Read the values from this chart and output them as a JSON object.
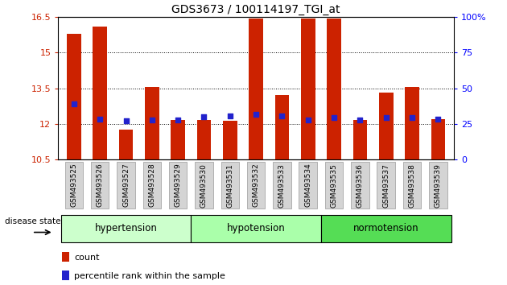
{
  "title": "GDS3673 / 100114197_TGI_at",
  "samples": [
    "GSM493525",
    "GSM493526",
    "GSM493527",
    "GSM493528",
    "GSM493529",
    "GSM493530",
    "GSM493531",
    "GSM493532",
    "GSM493533",
    "GSM493534",
    "GSM493535",
    "GSM493536",
    "GSM493537",
    "GSM493538",
    "GSM493539"
  ],
  "bar_heights": [
    15.8,
    16.1,
    11.75,
    13.55,
    12.18,
    12.18,
    12.12,
    16.45,
    13.22,
    16.45,
    16.45,
    12.18,
    13.32,
    13.55,
    12.22
  ],
  "blue_dot_y": [
    12.85,
    12.22,
    12.12,
    12.18,
    12.18,
    12.32,
    12.35,
    12.42,
    12.35,
    12.18,
    12.28,
    12.18,
    12.28,
    12.28,
    12.22
  ],
  "bar_color": "#cc2200",
  "dot_color": "#2222cc",
  "ylim_left": [
    10.5,
    16.5
  ],
  "ylim_right": [
    0,
    100
  ],
  "yticks_left": [
    10.5,
    12.0,
    13.5,
    15.0,
    16.5
  ],
  "yticks_right": [
    0,
    25,
    50,
    75,
    100
  ],
  "ytick_labels_left": [
    "10.5",
    "12",
    "13.5",
    "15",
    "16.5"
  ],
  "ytick_labels_right": [
    "0",
    "25",
    "50",
    "75",
    "100%"
  ],
  "groups": [
    {
      "label": "hypertension",
      "start": 0,
      "end": 4,
      "color": "#ccffcc"
    },
    {
      "label": "hypotension",
      "start": 5,
      "end": 9,
      "color": "#aaffaa"
    },
    {
      "label": "normotension",
      "start": 10,
      "end": 14,
      "color": "#55dd55"
    }
  ],
  "disease_state_label": "disease state",
  "legend_items": [
    {
      "label": "count",
      "color": "#cc2200"
    },
    {
      "label": "percentile rank within the sample",
      "color": "#2222cc"
    }
  ],
  "bar_width": 0.55,
  "bg_color": "#ffffff",
  "grid_color": "#000000",
  "xtick_bg": "#d4d4d4",
  "xtick_edge": "#999999"
}
